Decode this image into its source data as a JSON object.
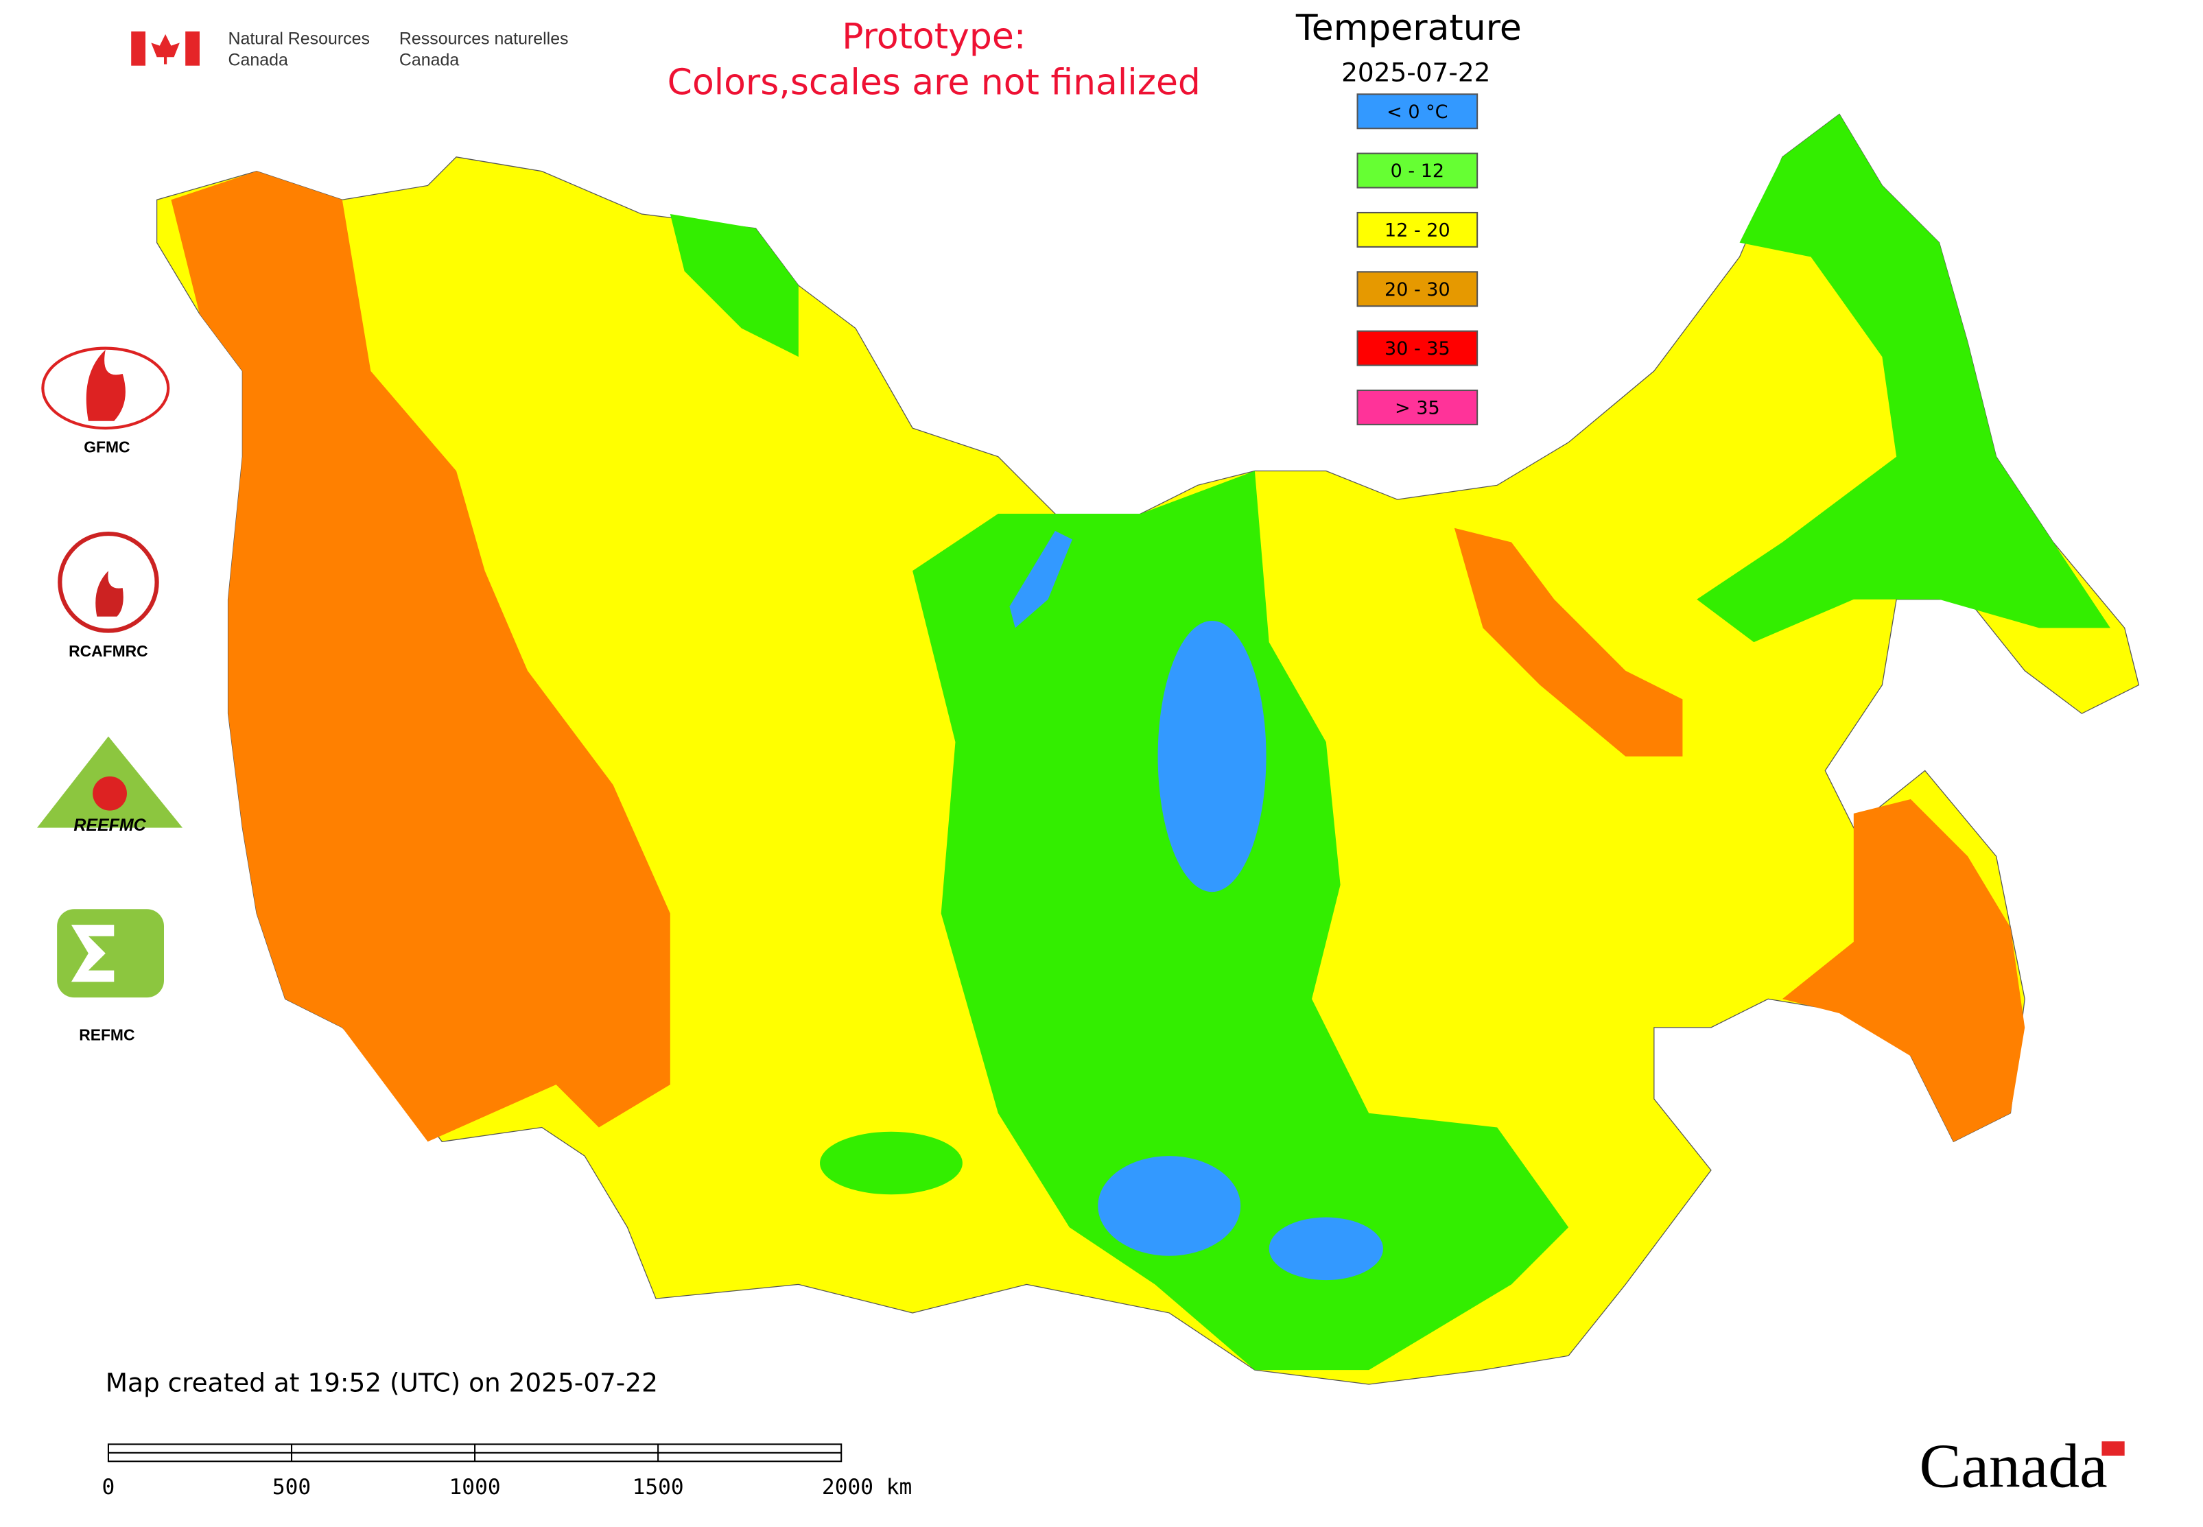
{
  "header": {
    "agency_en": [
      "Natural Resources",
      "Canada"
    ],
    "agency_fr": [
      "Ressources naturelles",
      "Canada"
    ]
  },
  "notice": [
    "Prototype:",
    "Colors,scales are not finalized"
  ],
  "legend": {
    "title": "Temperature",
    "date": "2025-07-22",
    "items": [
      {
        "label": "< 0 °C",
        "color": "#3399ff"
      },
      {
        "label": "0 - 12",
        "color": "#66ff33"
      },
      {
        "label": "12 - 20",
        "color": "#ffff00"
      },
      {
        "label": "20 - 30",
        "color": "#e69900"
      },
      {
        "label": "30 - 35",
        "color": "#ff0000"
      },
      {
        "label": "> 35",
        "color": "#ff3399"
      }
    ]
  },
  "logos": [
    "GFMC",
    "RCAFMRC",
    "REEFMC",
    "REFMC"
  ],
  "footer": {
    "created": "Map created at 19:52 (UTC) on 2025-07-22",
    "scale_labels": [
      "0",
      "500",
      "1000",
      "1500",
      "2000 km"
    ],
    "wordmark": "Canada"
  }
}
